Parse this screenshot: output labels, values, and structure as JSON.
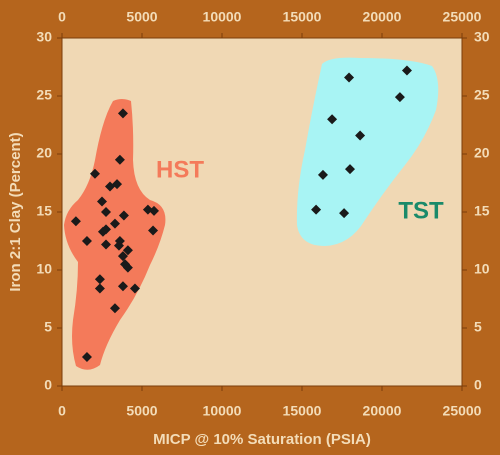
{
  "chart_data": {
    "type": "scatter",
    "x_label": "MICP @ 10% Saturation (PSIA)",
    "y_label": "Iron 2:1 Clay (Percent)",
    "annotations": [
      "HST",
      "TST"
    ],
    "xlim": [
      0,
      25000
    ],
    "xticks": [
      0,
      5000,
      10000,
      15000,
      20000,
      25000
    ],
    "ylim": [
      0,
      30
    ],
    "yticks": [
      0,
      5,
      10,
      15,
      20,
      25,
      30
    ],
    "series": [
      {
        "color": "#1a1a1a",
        "x": [
          3810,
          3620,
          2060,
          3440,
          3000,
          2500,
          870,
          2750,
          3870,
          5370,
          5750,
          5690,
          3310,
          2750,
          2560,
          1560,
          3620,
          3560,
          4120,
          3810,
          3940,
          4120,
          2370,
          2370,
          3810,
          4560,
          3310,
          1560,
          2750
        ],
        "y": [
          23.5,
          19.5,
          18.3,
          17.4,
          17.2,
          15.9,
          14.2,
          15.0,
          14.7,
          15.2,
          15.1,
          13.4,
          14.0,
          13.5,
          13.3,
          12.5,
          12.5,
          12.1,
          11.7,
          11.2,
          10.5,
          10.2,
          9.2,
          8.4,
          8.6,
          8.4,
          6.7,
          2.5,
          12.2
        ]
      },
      {
        "color": "#1a1a1a",
        "x": [
          21560,
          17940,
          21120,
          16880,
          18630,
          16310,
          18000,
          15880,
          17630
        ],
        "y": [
          27.2,
          26.6,
          24.9,
          23.0,
          21.6,
          18.2,
          18.7,
          15.2,
          14.9
        ]
      }
    ]
  }
}
